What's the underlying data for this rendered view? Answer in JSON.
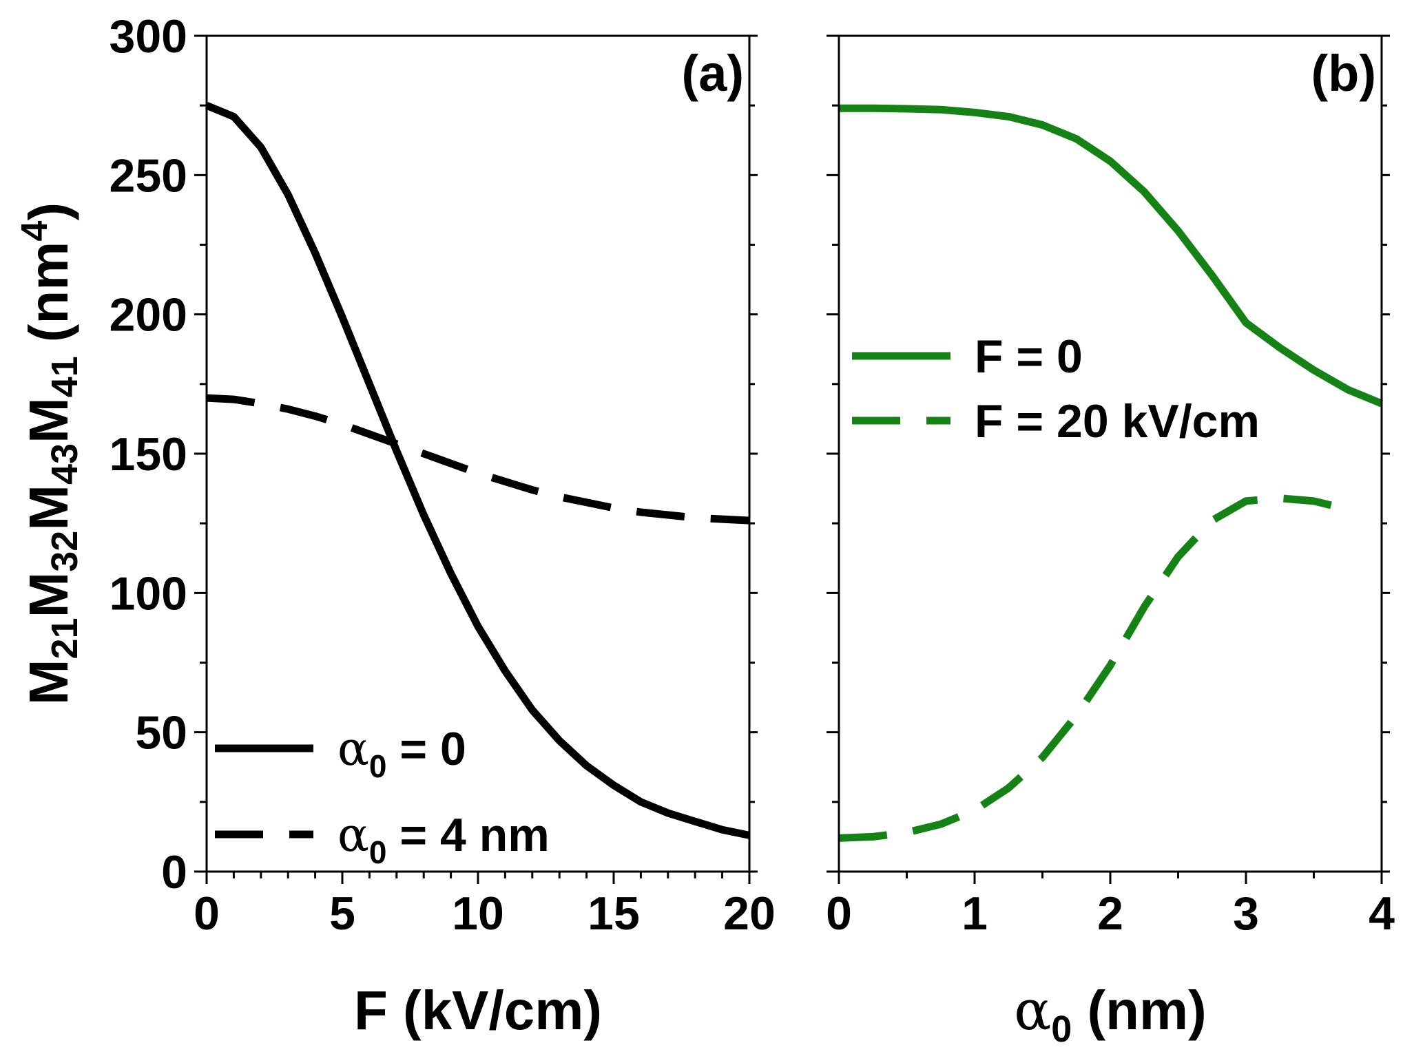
{
  "chart_data": [
    {
      "type": "line",
      "panel_label": "(a)",
      "xlabel": "F (kV/cm)",
      "ylabel": {
        "base": "M",
        "parts": [
          {
            "sym": "M",
            "sub": "21"
          },
          {
            "sym": "M",
            "sub": "32"
          },
          {
            "sym": "M",
            "sub": "43"
          },
          {
            "sym": "M",
            "sub": "41"
          }
        ],
        "unit_open": "(nm",
        "unit_sup": "4",
        "unit_close": ")"
      },
      "xlim": [
        0,
        20
      ],
      "ylim": [
        0,
        300
      ],
      "xticks": [
        "0",
        "5",
        "10",
        "15",
        "20"
      ],
      "yticks": [
        "0",
        "50",
        "100",
        "150",
        "200",
        "250",
        "300"
      ],
      "legend_position": "bottom-left",
      "series": [
        {
          "name": "α0 = 0",
          "legend_sym": "α",
          "legend_sub": "0",
          "legend_rest": " = 0",
          "style": "solid",
          "color": "#000000",
          "x": [
            0,
            1,
            2,
            3,
            4,
            5,
            6,
            7,
            8,
            9,
            10,
            11,
            12,
            13,
            14,
            15,
            16,
            17,
            18,
            19,
            20
          ],
          "y": [
            275,
            271,
            260,
            243,
            222,
            199,
            175,
            151,
            128,
            107,
            88,
            72,
            58,
            47,
            38,
            31,
            25,
            21,
            18,
            15,
            13
          ]
        },
        {
          "name": "α0 = 4 nm",
          "legend_sym": "α",
          "legend_sub": "0",
          "legend_rest": " = 4 nm",
          "style": "dashed",
          "color": "#000000",
          "x": [
            0,
            1,
            2,
            3,
            4,
            5,
            6,
            7,
            8,
            9,
            10,
            11,
            12,
            13,
            14,
            15,
            16,
            17,
            18,
            19,
            20
          ],
          "y": [
            170,
            169.5,
            168,
            166,
            163.5,
            160.5,
            157,
            153.5,
            150,
            146.5,
            143,
            140,
            137,
            134.5,
            132.5,
            130.5,
            129,
            128,
            127,
            126.5,
            126
          ]
        }
      ]
    },
    {
      "type": "line",
      "panel_label": "(b)",
      "xlabel_sym": "α",
      "xlabel_sub": "0",
      "xlabel_rest": " (nm)",
      "xlim": [
        0,
        4
      ],
      "ylim": [
        0,
        300
      ],
      "xticks": [
        "0",
        "1",
        "2",
        "3",
        "4"
      ],
      "legend_position": "middle-left",
      "series": [
        {
          "name": "F = 0",
          "style": "solid",
          "color": "#148214",
          "x": [
            0,
            0.25,
            0.5,
            0.75,
            1.0,
            1.25,
            1.5,
            1.75,
            2.0,
            2.25,
            2.5,
            2.75,
            3.0,
            3.25,
            3.5,
            3.75,
            4.0
          ],
          "y": [
            274,
            274,
            273.8,
            273.5,
            272.5,
            271,
            268,
            263,
            255,
            244,
            230,
            214,
            197,
            188,
            180,
            173,
            168
          ]
        },
        {
          "name": "F = 20 kV/cm",
          "style": "dashed",
          "color": "#148214",
          "x": [
            0,
            0.25,
            0.5,
            0.75,
            1.0,
            1.25,
            1.5,
            1.75,
            2.0,
            2.25,
            2.5,
            2.75,
            3.0,
            3.25,
            3.5,
            3.75
          ],
          "y": [
            12,
            12.5,
            14,
            17,
            22,
            30,
            41,
            56,
            74,
            95,
            113,
            126,
            133,
            134,
            133,
            130
          ]
        }
      ]
    }
  ]
}
